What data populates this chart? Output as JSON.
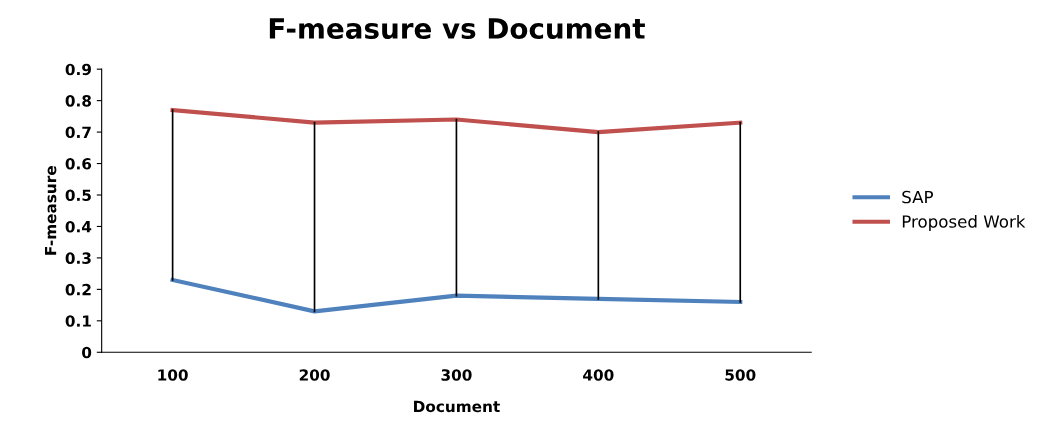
{
  "chart_data": {
    "type": "line",
    "title": "F-measure vs Document",
    "xlabel": "Document",
    "ylabel": "F-measure",
    "categories": [
      "100",
      "200",
      "300",
      "400",
      "500"
    ],
    "series": [
      {
        "name": "SAP",
        "color": "#4f81bd",
        "values": [
          0.23,
          0.13,
          0.18,
          0.17,
          0.16
        ]
      },
      {
        "name": "Proposed Work",
        "color": "#c0504d",
        "values": [
          0.77,
          0.73,
          0.74,
          0.7,
          0.73
        ],
        "errors": [
          [
            0.23,
            0.77
          ],
          [
            0.13,
            0.73
          ],
          [
            0.18,
            0.74
          ],
          [
            0.17,
            0.7
          ],
          [
            0.16,
            0.73
          ]
        ]
      }
    ],
    "ylim": [
      0,
      0.9
    ],
    "yticks": [
      0,
      0.1,
      0.2,
      0.3,
      0.4,
      0.5,
      0.6,
      0.7,
      0.8,
      0.9
    ],
    "grid": false,
    "legend": "right",
    "marker": "none",
    "line_style": "solid"
  }
}
